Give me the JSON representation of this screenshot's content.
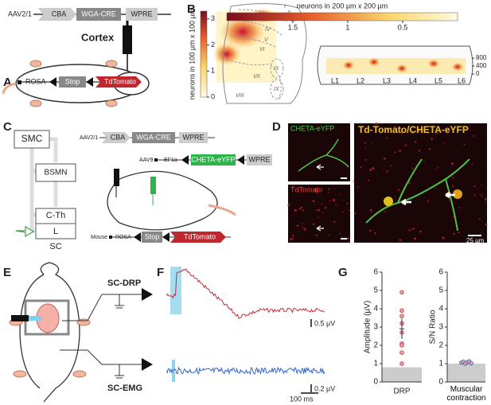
{
  "panel_labels": [
    "A",
    "B",
    "C",
    "D",
    "E",
    "F",
    "G"
  ],
  "A": {
    "vector": "AAV2/1",
    "elements": [
      "CBA",
      "WGA-CRE",
      "WPRE"
    ],
    "site": "Cortex",
    "mouse_elements": [
      "ROSA",
      "Stop",
      "TdTomato"
    ]
  },
  "B": {
    "left_colorbar": {
      "label": "neurons in 100 µm x 100 µm",
      "lim": [
        0,
        3.3
      ],
      "ticks": [
        0,
        1,
        2,
        3
      ]
    },
    "laminae": [
      "I",
      "II",
      "III",
      "IV",
      "V",
      "VI",
      "VII",
      "VIII",
      "IX",
      "IX"
    ],
    "right_colorbar": {
      "label": "neurons in 200 µm x 200 µm",
      "lim": [
        2.1,
        0
      ],
      "ticks": [
        1.5,
        1,
        0.5
      ]
    },
    "depth": {
      "lim": [
        0,
        800
      ],
      "ticks": [
        800,
        400,
        0
      ]
    },
    "segments": [
      "L1",
      "L2",
      "L3",
      "L4",
      "L5",
      "L6"
    ]
  },
  "C": {
    "nodes": [
      "SMC",
      "BSMN",
      "C-Th",
      "L",
      "SC"
    ],
    "row1": {
      "vector": "AAV2/1",
      "elements": [
        "CBA",
        "WGA-CRE",
        "WPRE"
      ]
    },
    "row2": {
      "vector": "AAV9",
      "elements": [
        "EF1a",
        "CHETA-eYFP",
        "WPRE"
      ]
    },
    "row3": {
      "vector": "Mouse",
      "elements": [
        "ROSA",
        "Stop",
        "TdTomato"
      ]
    }
  },
  "D": {
    "images": [
      "CHETA-eYFP",
      "TdTomato",
      "Td-Tomato/CHETA-eYFP"
    ],
    "scale_bar": "25 µm"
  },
  "E": {
    "recordings": [
      "SC-DRP",
      "SC-EMG"
    ]
  },
  "F": {
    "scale_bars": [
      "0.5 µV",
      "0.2 µV",
      "100 ms"
    ]
  },
  "G": {
    "left": {
      "ylabel": "Amplitude (µV)",
      "category": "DRP",
      "ylim": [
        0,
        6
      ],
      "yticks": [
        0,
        1,
        2,
        3,
        4,
        5,
        6
      ],
      "values": [
        4.9,
        3.9,
        3.6,
        3.2,
        2.7,
        2.1,
        2.0,
        1.6,
        1.0
      ],
      "mean": 2.9,
      "error": 0.55,
      "noise": 0.8
    },
    "right": {
      "ylabel": "S/N Ratio",
      "category": "Muscular contraction",
      "ylim": [
        0,
        6
      ],
      "yticks": [
        0,
        1,
        2,
        3,
        4,
        5,
        6
      ],
      "values": [
        1.05,
        1.1,
        1.0,
        1.08,
        1.12,
        1.02
      ],
      "noise": 1.0
    }
  }
}
